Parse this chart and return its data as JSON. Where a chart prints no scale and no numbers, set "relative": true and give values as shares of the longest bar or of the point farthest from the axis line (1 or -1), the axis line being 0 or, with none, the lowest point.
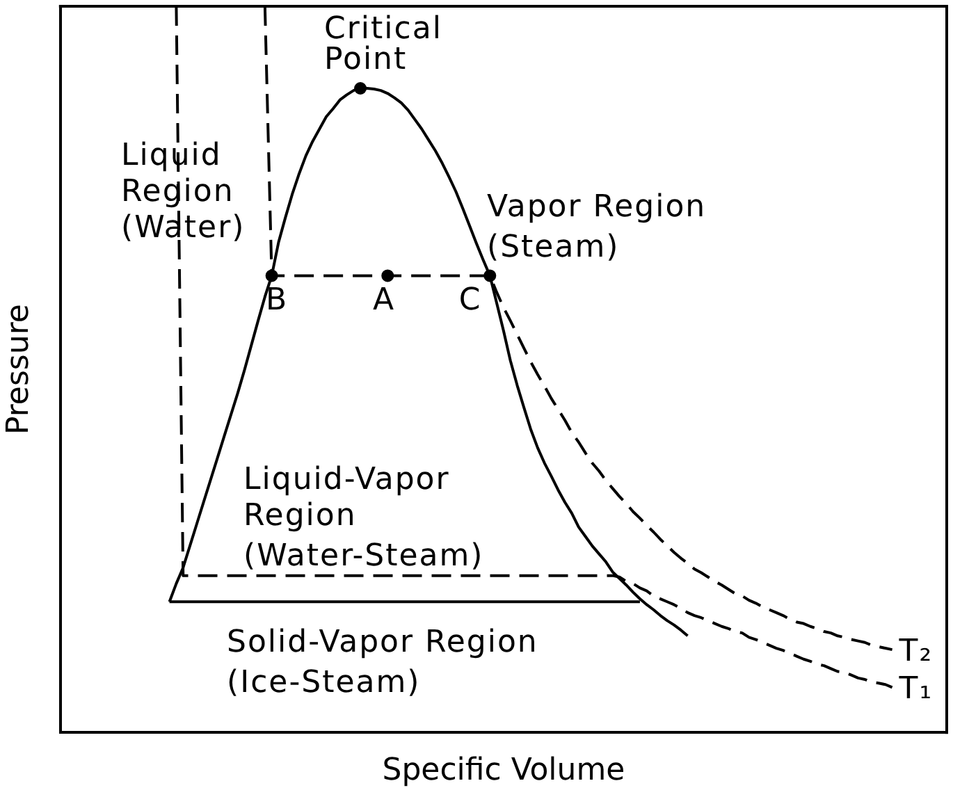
{
  "chart_data": {
    "type": "line",
    "relative": true,
    "xlabel": "Specific Volume",
    "ylabel": "Pressure",
    "tick_labels": false,
    "categories": [
      null,
      null,
      null,
      null,
      null,
      null,
      null,
      null,
      null,
      null,
      null,
      null,
      null,
      null,
      null,
      null,
      null,
      null,
      null,
      null,
      null,
      null,
      null,
      null,
      null,
      null,
      null,
      null,
      null,
      null,
      null,
      null,
      null,
      null,
      null,
      null,
      null,
      null,
      null,
      null,
      null,
      null,
      null,
      null,
      null,
      null,
      null,
      null,
      null,
      null,
      null,
      null,
      null,
      null,
      null,
      null,
      null,
      null,
      null,
      null,
      null,
      null,
      null,
      null,
      null,
      null,
      null,
      null,
      null,
      null,
      null,
      null,
      null,
      null,
      null,
      null,
      null,
      null,
      null,
      null,
      null,
      null,
      null,
      null,
      null,
      null,
      null,
      null,
      null,
      null,
      null,
      null,
      null,
      null,
      null,
      null,
      null,
      null,
      null,
      null,
      null,
      null,
      null,
      null,
      null,
      null,
      null,
      null,
      null,
      null,
      null,
      null,
      null,
      null,
      null,
      null,
      null,
      null,
      null,
      null,
      null,
      null,
      null,
      null,
      null,
      null,
      null,
      null,
      null,
      null,
      null
    ],
    "annotations": [
      "Critical\nPoint",
      "Liquid\nRegion\n(Water)",
      "Vapor Region\n(Steam)",
      "B",
      "A",
      "C",
      "Liquid-Vapor\nRegion\n(Water-Steam)",
      "Solid-Vapor Region\n(Ice-Steam)"
    ],
    "series": [
      {
        "type": "line",
        "color": "#000000",
        "line_style": "solid",
        "values": [
          null,
          null,
          null,
          null,
          null,
          null,
          null,
          null,
          null,
          null,
          null,
          null,
          null,
          null,
          null,
          null,
          0.18,
          0.205,
          0.227,
          0.257,
          0.287,
          0.317,
          0.347,
          0.377,
          0.407,
          0.437,
          0.467,
          0.499,
          0.533,
          0.567,
          0.6,
          0.629,
          0.675,
          0.709,
          0.741,
          0.769,
          0.794,
          0.814,
          0.831,
          0.848,
          0.859,
          0.871,
          0.878,
          0.884,
          0.887,
          0.887,
          0.886,
          0.884,
          0.88,
          0.874,
          0.867,
          0.857,
          0.844,
          0.831,
          0.816,
          0.801,
          0.784,
          0.765,
          0.745,
          0.722,
          0.698,
          0.674,
          0.651,
          0.629,
          0.591,
          0.553,
          0.512,
          0.478,
          0.447,
          0.417,
          0.392,
          0.371,
          0.353,
          0.334,
          0.317,
          0.302,
          0.283,
          0.27,
          0.257,
          0.246,
          0.235,
          0.221,
          0.212,
          0.203,
          0.193,
          0.184,
          0.176,
          0.169,
          0.161,
          0.154,
          0.148,
          0.141,
          0.133,
          null,
          null,
          null,
          null,
          null,
          null,
          null,
          null,
          null,
          null,
          null,
          null,
          null,
          null,
          null,
          null,
          null,
          null,
          null,
          null,
          null,
          null,
          null,
          null,
          null,
          null,
          null,
          null,
          null,
          null,
          null,
          null,
          null,
          null,
          null,
          null,
          null,
          null
        ]
      },
      {
        "type": "line",
        "color": "#000000",
        "line_style": "solid",
        "values": [
          null,
          null,
          null,
          null,
          null,
          null,
          null,
          null,
          null,
          null,
          null,
          null,
          null,
          null,
          null,
          null,
          0.18,
          0.18,
          0.18,
          0.18,
          0.18,
          0.18,
          0.18,
          0.18,
          0.18,
          0.18,
          0.18,
          0.18,
          0.18,
          0.18,
          0.18,
          0.18,
          0.18,
          0.18,
          0.18,
          0.18,
          0.18,
          0.18,
          0.18,
          0.18,
          0.18,
          0.18,
          0.18,
          0.18,
          0.18,
          0.18,
          0.18,
          0.18,
          0.18,
          0.18,
          0.18,
          0.18,
          0.18,
          0.18,
          0.18,
          0.18,
          0.18,
          0.18,
          0.18,
          0.18,
          0.18,
          0.18,
          0.18,
          0.18,
          0.18,
          0.18,
          0.18,
          0.18,
          0.18,
          0.18,
          0.18,
          0.18,
          0.18,
          0.18,
          0.18,
          0.18,
          0.18,
          0.18,
          0.18,
          0.18,
          0.18,
          0.18,
          0.18,
          0.18,
          0.18,
          0.18,
          null,
          null,
          null,
          null,
          null,
          null,
          null,
          null,
          null,
          null,
          null,
          null,
          null,
          null,
          null,
          null,
          null,
          null,
          null,
          null,
          null,
          null,
          null,
          null,
          null,
          null,
          null,
          null,
          null,
          null,
          null,
          null,
          null,
          null,
          null,
          null,
          null,
          null,
          null,
          null,
          null,
          null,
          null,
          null,
          null
        ]
      },
      {
        "type": "line",
        "name": "T₂",
        "color": "#000000",
        "line_style": "dashed",
        "values": [
          null,
          null,
          null,
          null,
          null,
          null,
          null,
          null,
          null,
          null,
          null,
          null,
          null,
          null,
          null,
          null,
          null,
          null,
          null,
          null,
          null,
          null,
          null,
          null,
          null,
          null,
          null,
          null,
          null,
          null,
          1,
          0.629,
          0.629,
          0.629,
          0.629,
          0.629,
          0.629,
          0.629,
          0.629,
          0.629,
          0.629,
          0.629,
          0.629,
          0.629,
          0.629,
          0.629,
          0.629,
          0.629,
          0.629,
          0.629,
          0.629,
          0.629,
          0.629,
          0.629,
          0.629,
          0.629,
          0.629,
          0.629,
          0.629,
          0.629,
          0.629,
          0.629,
          0.629,
          0.629,
          0.606,
          0.585,
          0.567,
          0.548,
          0.529,
          0.51,
          0.493,
          0.477,
          0.46,
          0.445,
          0.43,
          0.413,
          0.4,
          0.385,
          0.371,
          0.36,
          0.347,
          0.336,
          0.325,
          0.315,
          0.304,
          0.295,
          0.285,
          0.276,
          0.266,
          0.257,
          0.248,
          0.24,
          0.233,
          0.225,
          0.22,
          0.214,
          0.208,
          0.203,
          0.197,
          0.191,
          0.188,
          0.182,
          0.178,
          0.173,
          0.169,
          0.165,
          0.161,
          0.156,
          0.152,
          0.15,
          0.146,
          0.143,
          0.139,
          0.137,
          0.133,
          0.131,
          0.128,
          0.126,
          0.124,
          0.12,
          0.118,
          0.116,
          0.114,
          null,
          null,
          null,
          null,
          null,
          null,
          null,
          null
        ]
      },
      {
        "type": "line",
        "name": "T₁",
        "color": "#000000",
        "line_style": "dashed",
        "values": [
          null,
          null,
          null,
          null,
          null,
          null,
          null,
          null,
          null,
          null,
          null,
          null,
          null,
          null,
          null,
          null,
          null,
          1,
          0.216,
          0.216,
          0.216,
          0.216,
          0.216,
          0.216,
          0.216,
          0.216,
          0.216,
          0.216,
          0.216,
          0.216,
          0.216,
          0.216,
          0.216,
          0.216,
          0.216,
          0.216,
          0.216,
          0.216,
          0.216,
          0.216,
          0.216,
          0.216,
          0.216,
          0.216,
          0.216,
          0.216,
          0.216,
          0.216,
          0.216,
          0.216,
          0.216,
          0.216,
          0.216,
          0.216,
          0.216,
          0.216,
          0.216,
          0.216,
          0.216,
          0.216,
          0.216,
          0.216,
          0.216,
          0.216,
          0.216,
          0.216,
          0.216,
          0.216,
          0.216,
          0.216,
          0.216,
          0.216,
          0.216,
          0.216,
          0.216,
          0.216,
          0.216,
          0.216,
          0.216,
          0.216,
          0.216,
          0.216,
          0.214,
          0.208,
          0.205,
          0.199,
          0.195,
          0.188,
          0.184,
          0.18,
          0.176,
          0.171,
          0.165,
          0.161,
          0.158,
          0.154,
          0.15,
          0.146,
          0.143,
          0.139,
          0.137,
          0.131,
          0.128,
          0.124,
          0.12,
          0.116,
          0.113,
          0.109,
          0.105,
          0.101,
          0.098,
          0.094,
          0.092,
          0.088,
          0.084,
          0.083,
          0.079,
          0.075,
          0.073,
          0.069,
          0.068,
          0.066,
          0.062,
          null,
          null,
          null,
          null,
          null,
          null,
          null,
          null
        ]
      },
      {
        "type": "line",
        "color": "#000000",
        "marker": "circle",
        "values": [
          null,
          null,
          null,
          null,
          null,
          null,
          null,
          null,
          null,
          null,
          null,
          null,
          null,
          null,
          null,
          null,
          null,
          null,
          null,
          null,
          null,
          null,
          null,
          null,
          null,
          null,
          null,
          null,
          null,
          null,
          null,
          0.629,
          null,
          null,
          null,
          null,
          null,
          null,
          null,
          null,
          null,
          null,
          null,
          null,
          0.887,
          null,
          null,
          null,
          0.629,
          null,
          null,
          null,
          null,
          null,
          null,
          null,
          null,
          null,
          null,
          null,
          null,
          null,
          null,
          0.629,
          null,
          null,
          null,
          null,
          null,
          null,
          null,
          null,
          null,
          null,
          null,
          null,
          null,
          null,
          null,
          null,
          null,
          null,
          null,
          null,
          null,
          null,
          null,
          null,
          null,
          null,
          null,
          null,
          null,
          null,
          null,
          null,
          null,
          null,
          null,
          null,
          null,
          null,
          null,
          null,
          null,
          null,
          null,
          null,
          null,
          null,
          null,
          null,
          null,
          null,
          null,
          null,
          null,
          null,
          null,
          null,
          null,
          null,
          null,
          null,
          null,
          null,
          null,
          null,
          null,
          null,
          null
        ]
      }
    ]
  }
}
